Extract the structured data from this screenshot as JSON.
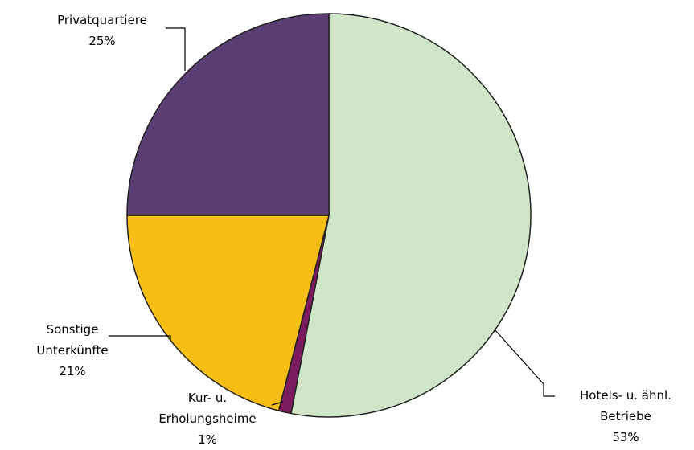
{
  "chart_data": {
    "type": "pie",
    "categories": [
      "Hotels- u. ähnl. Betriebe",
      "Kur- u. Erholungsheime",
      "Sonstige Unterkünfte",
      "Privatquartiere"
    ],
    "values": [
      53,
      1,
      21,
      25
    ],
    "value_labels": [
      "53%",
      "1%",
      "21%",
      "25%"
    ],
    "colors": [
      "#d0e6c8",
      "#7b1a5e",
      "#f9be14",
      "#5a3d73"
    ]
  }
}
